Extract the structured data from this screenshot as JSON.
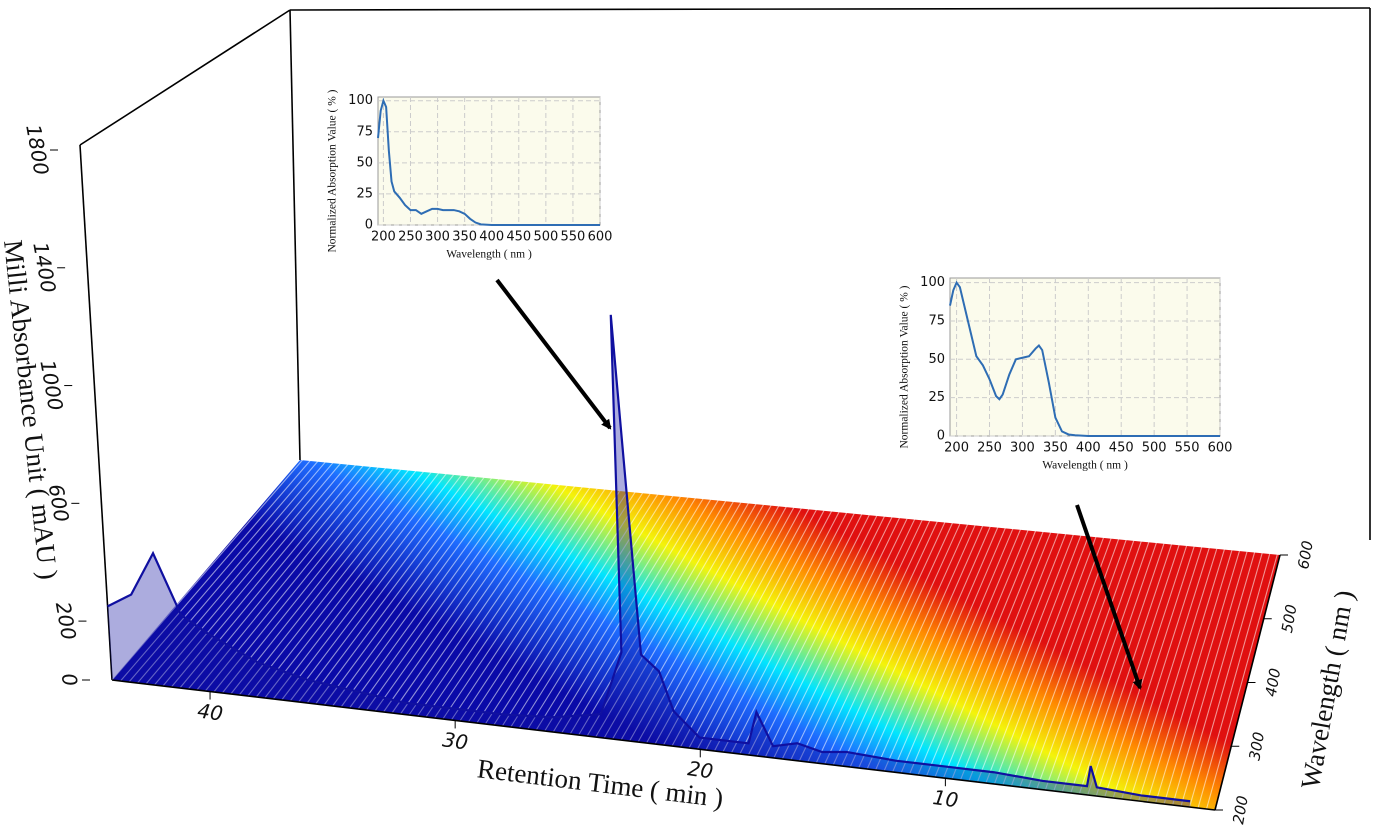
{
  "chart_data": [
    {
      "type": "surface3d",
      "xlabel": "Retention Time ( min )",
      "ylabel": "Wavelength ( nm )",
      "zlabel": "Milli Absorbance Unit ( mAU )",
      "xlim": [
        44,
        -1
      ],
      "xticks": [
        10,
        20,
        30,
        40
      ],
      "ylim": [
        200,
        600
      ],
      "yticks": [
        200,
        300,
        400,
        500,
        600
      ],
      "zlim": [
        0,
        1800
      ],
      "zticks": [
        0,
        200,
        600,
        1000,
        1400,
        1800
      ],
      "x": [
        44,
        43,
        42,
        41,
        40,
        38,
        36,
        34,
        32,
        30,
        28,
        26,
        24,
        23,
        22.6,
        22.2,
        21.5,
        21,
        20,
        18,
        17.6,
        17,
        16,
        15,
        14,
        12,
        10,
        8,
        6,
        4.2,
        4,
        3.8,
        2,
        0
      ],
      "values": [
        250,
        300,
        450,
        250,
        200,
        120,
        80,
        60,
        40,
        40,
        40,
        50,
        80,
        300,
        1450,
        300,
        250,
        120,
        40,
        40,
        150,
        40,
        60,
        40,
        50,
        40,
        40,
        40,
        30,
        30,
        100,
        30,
        20,
        20
      ],
      "color": "#1010a0"
    },
    {
      "type": "line",
      "xlabel": "Wavelength ( nm )",
      "ylabel": "Normalized Absorption Value ( % )",
      "x": [
        190,
        195,
        200,
        205,
        210,
        215,
        220,
        230,
        240,
        250,
        260,
        270,
        280,
        290,
        300,
        310,
        320,
        330,
        340,
        350,
        360,
        370,
        380,
        400,
        450,
        500,
        550,
        600
      ],
      "values": [
        70,
        92,
        100,
        95,
        60,
        35,
        27,
        22,
        16,
        12,
        12,
        9,
        11,
        13,
        13,
        12,
        12,
        12,
        11,
        9,
        5,
        2,
        0.5,
        0,
        0,
        0,
        0,
        0
      ],
      "xlim": [
        190,
        600
      ],
      "xticks": [
        200,
        250,
        300,
        350,
        400,
        450,
        500,
        550,
        600
      ],
      "ylim": [
        0,
        103
      ],
      "yticks": [
        0,
        25,
        50,
        75,
        100
      ],
      "color": "#2e6db4",
      "grid": true
    },
    {
      "type": "line",
      "xlabel": "Wavelength ( nm )",
      "ylabel": "Normalized Absorption Value ( % )",
      "x": [
        190,
        195,
        200,
        205,
        210,
        220,
        230,
        240,
        250,
        260,
        265,
        270,
        280,
        290,
        300,
        310,
        320,
        325,
        330,
        340,
        350,
        360,
        370,
        380,
        400,
        450,
        500,
        600
      ],
      "values": [
        85,
        95,
        100,
        97,
        88,
        70,
        52,
        46,
        37,
        26,
        24,
        27,
        40,
        50,
        51,
        52,
        57,
        59,
        56,
        35,
        12,
        3,
        1,
        0.5,
        0,
        0,
        0,
        0
      ],
      "xlim": [
        190,
        600
      ],
      "xticks": [
        200,
        250,
        300,
        350,
        400,
        450,
        500,
        550,
        600
      ],
      "ylim": [
        0,
        103
      ],
      "yticks": [
        0,
        25,
        50,
        75,
        100
      ],
      "color": "#2e6db4",
      "grid": true
    }
  ]
}
